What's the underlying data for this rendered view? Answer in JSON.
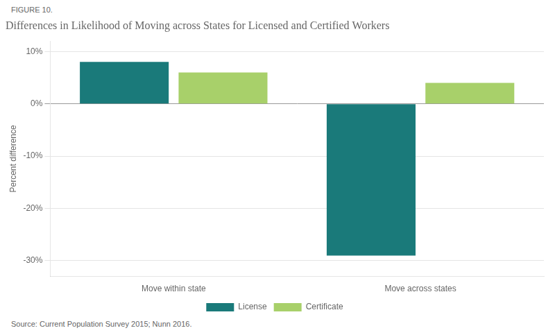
{
  "chart_data": {
    "type": "bar",
    "title": "Differences in Likelihood of Moving across States for Licensed and Certified Workers",
    "annotations": [
      "FIGURE 10.",
      "Source: Current Population Survey 2015; Nunn 2016."
    ],
    "categories": [
      "Move within state",
      "Move across states"
    ],
    "series": [
      {
        "name": "License",
        "color": "#1a7a7a",
        "values": [
          8.0,
          -29.0
        ]
      },
      {
        "name": "Certificate",
        "color": "#a8d06a",
        "values": [
          6.0,
          4.0
        ]
      }
    ],
    "y_label": "Percent difference",
    "ylim": [
      -33,
      12
    ],
    "yticks": [
      {
        "value": -30,
        "label": "-30%"
      },
      {
        "value": -20,
        "label": "-20%"
      },
      {
        "value": -10,
        "label": "-10%"
      },
      {
        "value": 0,
        "label": "0%"
      },
      {
        "value": 10,
        "label": "10%"
      }
    ],
    "grid": true,
    "legend": "bottom"
  }
}
